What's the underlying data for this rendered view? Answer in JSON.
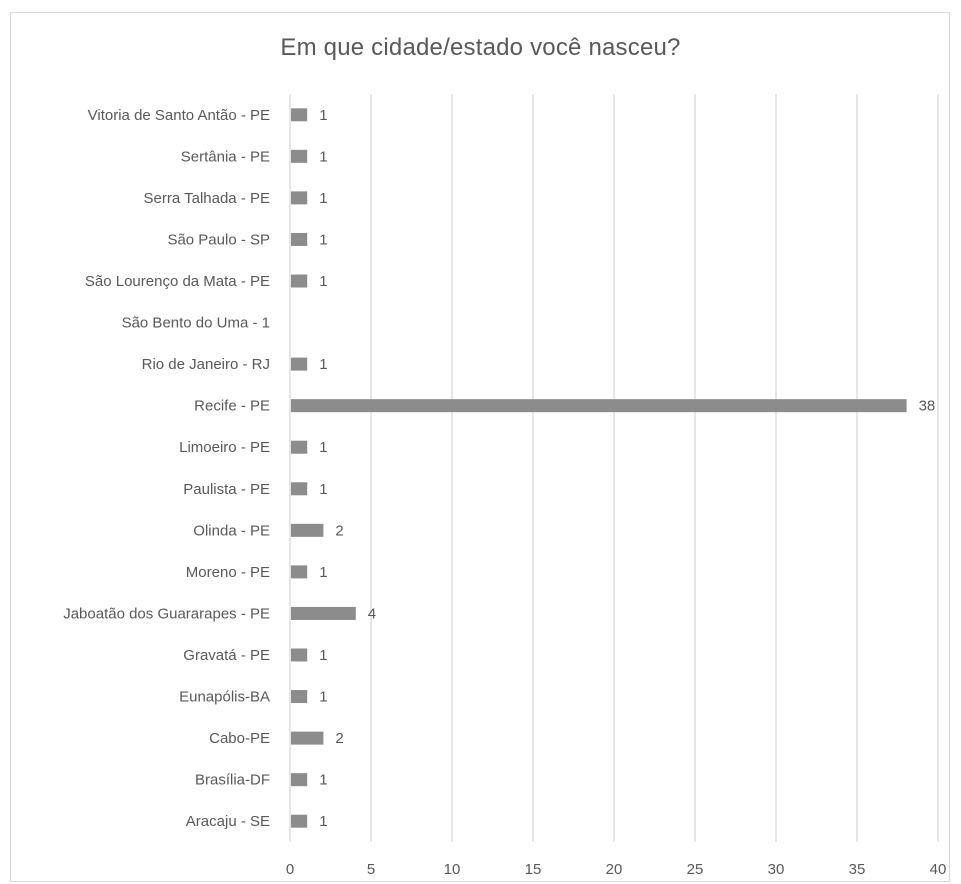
{
  "chart_data": {
    "type": "bar",
    "orientation": "horizontal",
    "title": "Em que cidade/estado você nasceu?",
    "categories": [
      "Aracaju - SE",
      "Brasília-DF",
      "Cabo-PE",
      "Eunapólis-BA",
      "Gravatá - PE",
      "Jaboatão dos Guararapes - PE",
      "Moreno - PE",
      "Olinda - PE",
      "Paulista - PE",
      "Limoeiro - PE",
      "Recife - PE",
      "Rio de Janeiro - RJ",
      "São Bento do Uma - 1",
      "São Lourenço da Mata - PE",
      "São Paulo - SP",
      "Serra Talhada - PE",
      "Sertânia - PE",
      "Vitoria de Santo Antão - PE"
    ],
    "values": [
      1,
      1,
      2,
      1,
      1,
      4,
      1,
      2,
      1,
      1,
      38,
      1,
      null,
      1,
      1,
      1,
      1,
      1
    ],
    "xlim": [
      0,
      40
    ],
    "xticks": [
      0,
      5,
      10,
      15,
      20,
      25,
      30,
      35,
      40
    ],
    "grid": true,
    "bar_color": "#8c8c8c",
    "grid_color": "#d9d9d9",
    "text_color": "#595959"
  }
}
